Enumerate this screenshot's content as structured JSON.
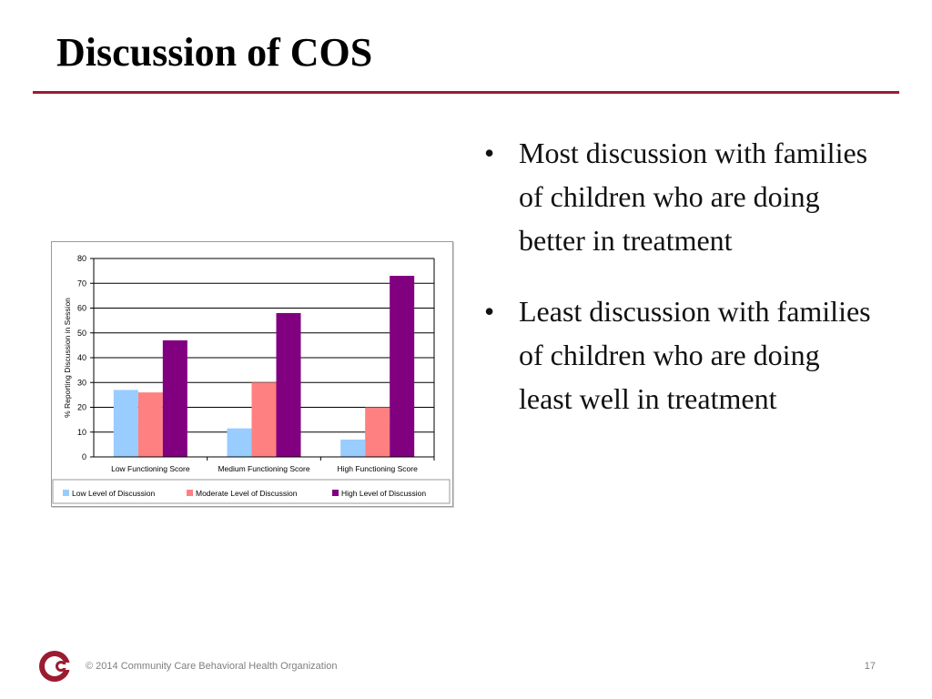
{
  "slide": {
    "title": "Discussion of COS",
    "bullets": [
      "Most discussion with families of children who are doing better in treatment",
      "Least discussion with families of children who are doing least well in treatment"
    ],
    "footer": "© 2014 Community Care Behavioral Health Organization",
    "page_number": "17",
    "accent_color": "#9b1b30"
  },
  "chart_data": {
    "type": "bar",
    "categories": [
      "Low Functioning Score",
      "Medium Functioning Score",
      "High Functioning Score"
    ],
    "series": [
      {
        "name": "Low Level of Discussion",
        "values": [
          27,
          11.5,
          7
        ],
        "color": "#99ccff"
      },
      {
        "name": "Moderate Level of Discussion",
        "values": [
          26,
          30,
          20
        ],
        "color": "#ff8080"
      },
      {
        "name": "High Level of Discussion",
        "values": [
          47,
          58,
          73
        ],
        "color": "#800080"
      }
    ],
    "title": "",
    "xlabel": "",
    "ylabel": "% Reporting Discussion in Session",
    "ylim": [
      0,
      80
    ],
    "yticks": [
      0,
      10,
      20,
      30,
      40,
      50,
      60,
      70,
      80
    ],
    "grid": true,
    "legend_position": "bottom"
  }
}
